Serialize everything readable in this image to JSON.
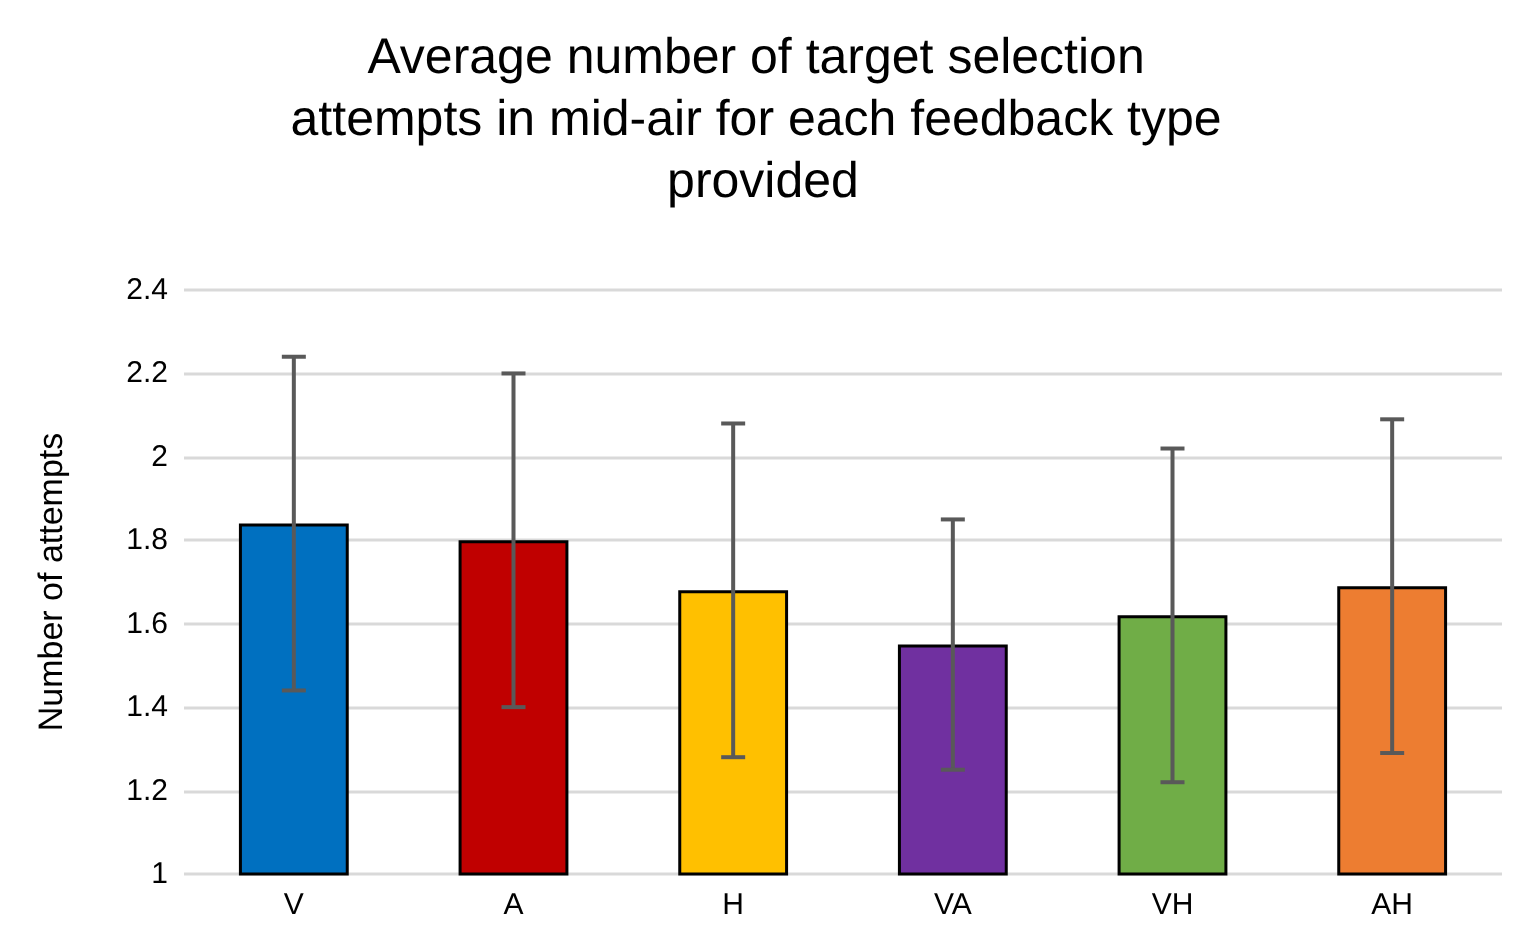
{
  "chart_data": {
    "type": "bar",
    "title": "Average number of target selection attempts in mid-air for each feedback type provided",
    "ylabel": "Number of attempts",
    "categories": [
      "V",
      "A",
      "H",
      "VA",
      "VH",
      "AH"
    ],
    "values": [
      1.84,
      1.8,
      1.68,
      1.55,
      1.62,
      1.69
    ],
    "errors": [
      0.4,
      0.4,
      0.4,
      0.3,
      0.4,
      0.4
    ],
    "colors": [
      "#0070c0",
      "#c00000",
      "#ffc000",
      "#7030a0",
      "#70ad47",
      "#ed7d31"
    ],
    "ylim": [
      1,
      2.4
    ],
    "yticks": [
      1,
      1.2,
      1.4,
      1.6,
      1.8,
      2,
      2.2,
      2.4
    ],
    "grid": "y"
  }
}
